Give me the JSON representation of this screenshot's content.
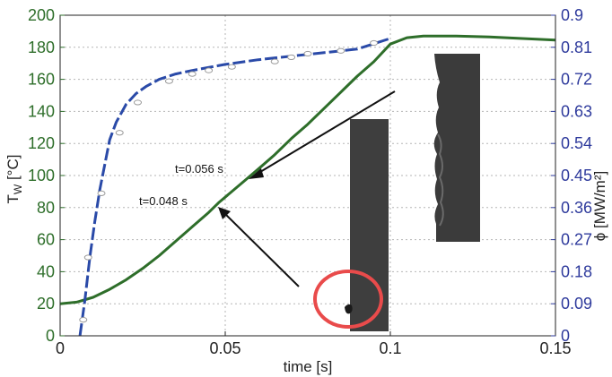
{
  "chart_data": {
    "type": "line",
    "xlabel": "time [s]",
    "ylabel_left_main": "T",
    "ylabel_left_sub": "W",
    "ylabel_left_unit": " [°C]",
    "ylabel_right": "ϕ [MW/m²]",
    "xlim": [
      0,
      0.15
    ],
    "ylim_left": [
      0,
      200
    ],
    "ylim_right": [
      0,
      0.9
    ],
    "x_ticks": [
      "0",
      "0.05",
      "0.1",
      "0.15"
    ],
    "x_tick_values": [
      0,
      0.05,
      0.1,
      0.15
    ],
    "y_left_ticks": [
      "0",
      "20",
      "40",
      "60",
      "80",
      "100",
      "120",
      "140",
      "160",
      "180",
      "200"
    ],
    "y_left_tick_values": [
      0,
      20,
      40,
      60,
      80,
      100,
      120,
      140,
      160,
      180,
      200
    ],
    "y_right_ticks": [
      "0",
      "0.09",
      "0.18",
      "0.27",
      "0.36",
      "0.45",
      "0.54",
      "0.63",
      "0.72",
      "0.81",
      "0.9"
    ],
    "y_right_tick_values": [
      0,
      0.09,
      0.18,
      0.27,
      0.36,
      0.45,
      0.54,
      0.63,
      0.72,
      0.81,
      0.9
    ],
    "grid": true,
    "series": [
      {
        "axis": "left",
        "color": "#2e6e2a",
        "style": "solid",
        "x": [
          0,
          0.005,
          0.01,
          0.015,
          0.02,
          0.025,
          0.03,
          0.035,
          0.04,
          0.045,
          0.048,
          0.056,
          0.06,
          0.065,
          0.07,
          0.075,
          0.08,
          0.085,
          0.09,
          0.095,
          0.1,
          0.105,
          0.11,
          0.12,
          0.13,
          0.14,
          0.15
        ],
        "values": [
          20,
          21,
          24,
          29,
          35,
          42,
          50,
          59,
          68,
          77,
          83,
          97,
          104,
          113,
          123,
          132,
          142,
          152,
          162,
          171,
          182,
          186,
          187,
          187,
          186.5,
          185.5,
          184.5
        ]
      },
      {
        "axis": "right",
        "color": "#2a4aa8",
        "style": "dashed",
        "markers": true,
        "x": [
          0.006,
          0.0075,
          0.009,
          0.0105,
          0.012,
          0.0135,
          0.015,
          0.017,
          0.02,
          0.023,
          0.026,
          0.03,
          0.035,
          0.04,
          0.05,
          0.06,
          0.07,
          0.08,
          0.09,
          0.1
        ],
        "values": [
          0,
          0.1,
          0.22,
          0.32,
          0.41,
          0.48,
          0.55,
          0.6,
          0.65,
          0.68,
          0.7,
          0.72,
          0.735,
          0.745,
          0.762,
          0.775,
          0.785,
          0.795,
          0.805,
          0.835
        ],
        "marker_x": [
          0.007,
          0.0085,
          0.0125,
          0.018,
          0.0235,
          0.033,
          0.04,
          0.045,
          0.052,
          0.065,
          0.07,
          0.075,
          0.085,
          0.095
        ],
        "marker_values": [
          0.045,
          0.22,
          0.4,
          0.57,
          0.655,
          0.715,
          0.735,
          0.745,
          0.755,
          0.77,
          0.782,
          0.792,
          0.8,
          0.822
        ]
      }
    ],
    "annotations": [
      {
        "text": "t=0.048 s",
        "x": 0.048,
        "y": 83
      },
      {
        "text": "t=0.056 s",
        "x": 0.056,
        "y": 97
      }
    ]
  }
}
